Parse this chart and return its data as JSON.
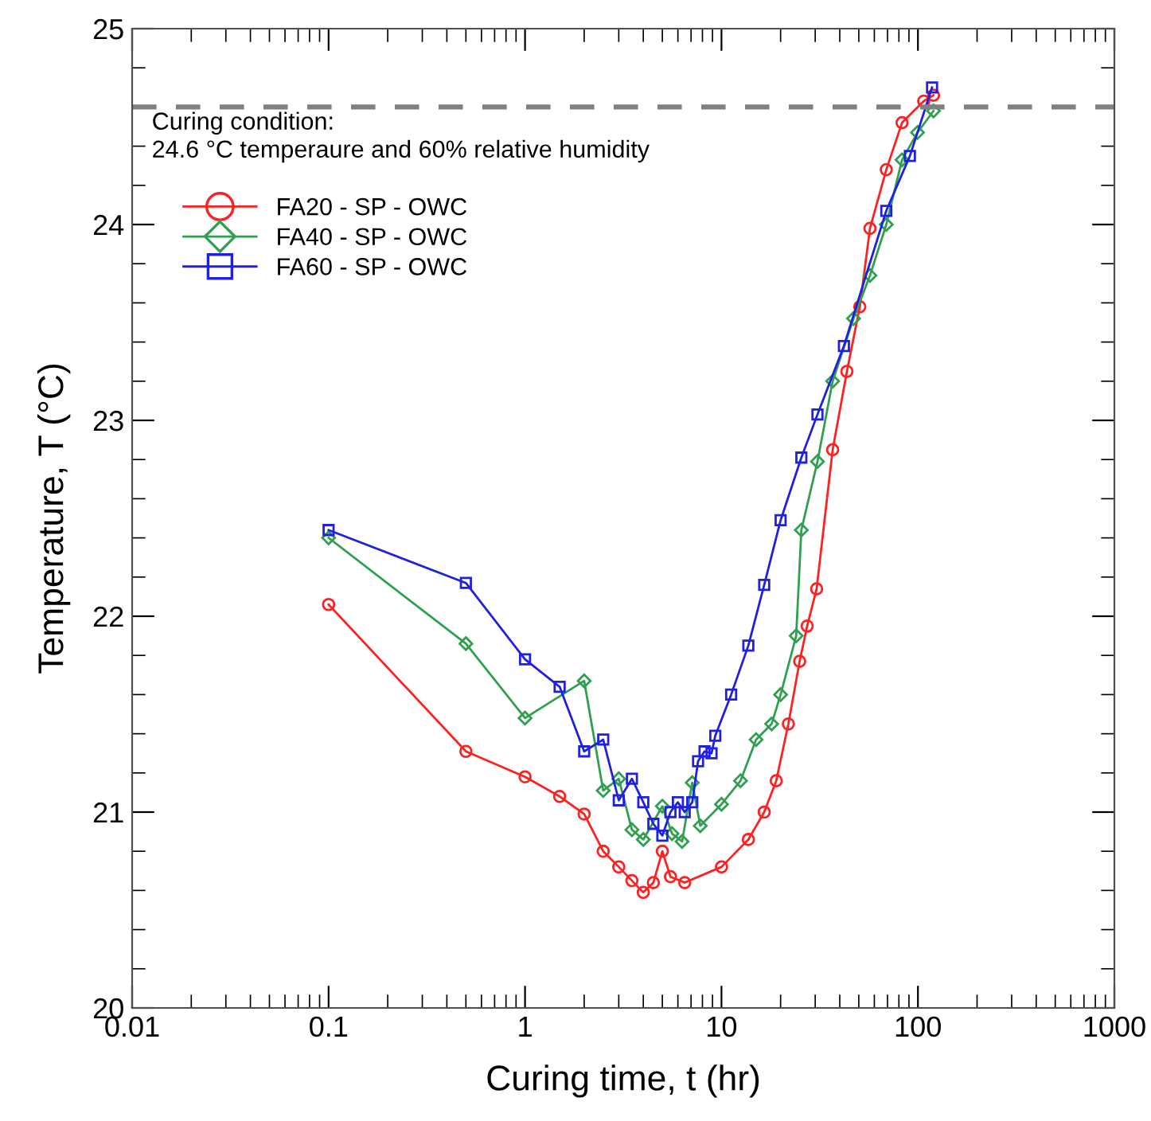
{
  "chart_data": {
    "type": "line",
    "xlabel": "Curing time, t (hr)",
    "ylabel": "Temperature, T (°C)",
    "log": "x",
    "xlim": [
      0.01,
      1000
    ],
    "xticks": [
      0.01,
      0.1,
      1,
      10,
      100,
      1000
    ],
    "ylim": [
      20,
      25
    ],
    "yticks": [
      20,
      21,
      22,
      23,
      24,
      25
    ],
    "grid": false,
    "legend": "top left",
    "line_style": "solid",
    "annotations": [
      "Curing condition:\n24.6 °C temperaure and 60% relative humidity"
    ],
    "ref_lines": [
      {
        "axis": "y",
        "value": 24.6,
        "label": null,
        "color": "#808080",
        "line_style": "dashed"
      }
    ],
    "series": [
      {
        "name": "FA20 - SP - OWC",
        "color": "#ff2020",
        "marker": "circle",
        "x": [
          0.1,
          0.5,
          1,
          1.5,
          2,
          2.5,
          3,
          3.5,
          4,
          4.5,
          5,
          5.5,
          6.5,
          10,
          13.7,
          16.5,
          19,
          21.9,
          25,
          27.3,
          30.5,
          36.8,
          43.5,
          50.6,
          57,
          69,
          83,
          107,
          120
        ],
        "values": [
          22.06,
          21.31,
          21.18,
          21.08,
          20.99,
          20.8,
          20.72,
          20.65,
          20.59,
          20.64,
          20.8,
          20.67,
          20.64,
          20.72,
          20.86,
          21.0,
          21.16,
          21.45,
          21.77,
          21.95,
          22.14,
          22.85,
          23.25,
          23.58,
          23.98,
          24.28,
          24.52,
          24.63,
          24.66
        ]
      },
      {
        "name": "FA40 - SP - OWC",
        "color": "#30a050",
        "marker": "diamond",
        "x": [
          0.1,
          0.5,
          1,
          2,
          2.5,
          3,
          3.5,
          4,
          5,
          5.6,
          6.3,
          7.1,
          7.8,
          10,
          12.5,
          15,
          18,
          20,
          24,
          25.5,
          30.8,
          36.8,
          47,
          57,
          69,
          83,
          99.5,
          120
        ],
        "values": [
          22.4,
          21.86,
          21.48,
          21.67,
          21.11,
          21.17,
          20.91,
          20.86,
          21.03,
          20.89,
          20.85,
          21.15,
          20.93,
          21.04,
          21.16,
          21.37,
          21.45,
          21.6,
          21.9,
          22.44,
          22.79,
          23.2,
          23.52,
          23.74,
          24.0,
          24.33,
          24.47,
          24.58
        ]
      },
      {
        "name": "FA60 - SP - OWC",
        "color": "#2020e0",
        "marker": "square",
        "x": [
          0.1,
          0.5,
          1,
          1.5,
          2,
          2.5,
          3,
          3.5,
          4,
          4.5,
          5,
          5.5,
          6,
          6.5,
          7.1,
          7.6,
          8.2,
          8.9,
          9.3,
          11.2,
          13.7,
          16.5,
          20,
          25.5,
          30.8,
          42,
          69,
          91,
          118
        ],
        "values": [
          22.44,
          22.17,
          21.78,
          21.64,
          21.31,
          21.37,
          21.06,
          21.17,
          21.05,
          20.94,
          20.88,
          21.0,
          21.05,
          21.0,
          21.05,
          21.26,
          21.31,
          21.3,
          21.39,
          21.6,
          21.85,
          22.16,
          22.49,
          22.81,
          23.03,
          23.38,
          24.07,
          24.35,
          24.7
        ]
      }
    ]
  }
}
